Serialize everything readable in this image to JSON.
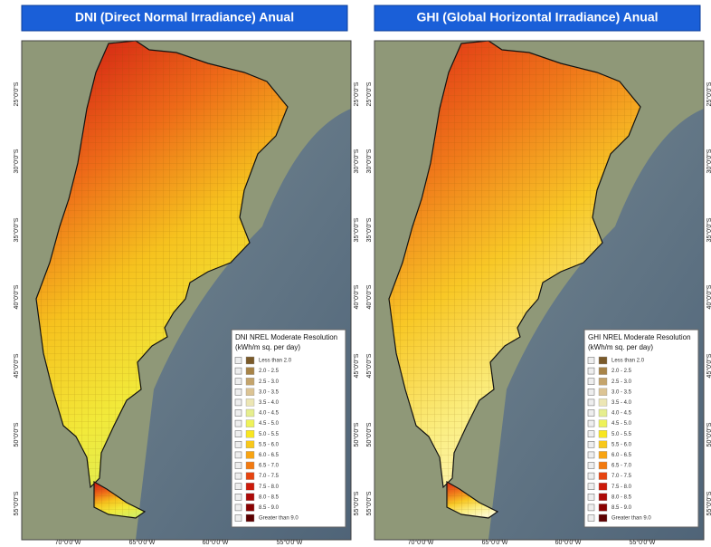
{
  "panels": [
    {
      "title": "DNI (Direct Normal Irradiance) Anual",
      "legend_title": "DNI NREL Moderate Resolution",
      "legend_unit": "(kWh/m sq. per day)",
      "fill_stops": [
        "#d42414",
        "#ee6a18",
        "#f6c21e",
        "#f2ea3a",
        "#d6ee60"
      ]
    },
    {
      "title": "GHI (Global Horizontal Irradiance) Anual",
      "legend_title": "GHI NREL Moderate Resolution",
      "legend_unit": "(kWh/m sq. per day)",
      "fill_stops": [
        "#e23a16",
        "#f07a1a",
        "#f8c826",
        "#fbee80",
        "#fdf8cc"
      ]
    }
  ],
  "legend_items": [
    "Less than 2.0",
    "2.0 - 2.5",
    "2.5 - 3.0",
    "3.0 - 3.5",
    "3.5 - 4.0",
    "4.0 - 4.5",
    "4.5 - 5.0",
    "5.0 - 5.5",
    "5.5 - 6.0",
    "6.0 - 6.5",
    "6.5 - 7.0",
    "7.0 - 7.5",
    "7.5 - 8.0",
    "8.0 - 8.5",
    "8.5 - 9.0",
    "Greater than 9.0"
  ],
  "legend_colors": [
    "#7a5a2a",
    "#a88448",
    "#c4a46c",
    "#dcc494",
    "#ece6b4",
    "#e6ee8e",
    "#eef25a",
    "#f8e620",
    "#f8c81a",
    "#f8a412",
    "#f27a10",
    "#e64410",
    "#cc1a0a",
    "#ac0a08",
    "#8a0202",
    "#5c0000"
  ],
  "lat_labels": [
    "25°0'0\"S",
    "30°0'0\"S",
    "35°0'0\"S",
    "40°0'0\"S",
    "45°0'0\"S",
    "50°0'0\"S",
    "55°0'0\"S"
  ],
  "lon_labels": [
    "70°0'0\"W",
    "65°0'0\"W",
    "60°0'0\"W",
    "55°0'0\"W"
  ]
}
